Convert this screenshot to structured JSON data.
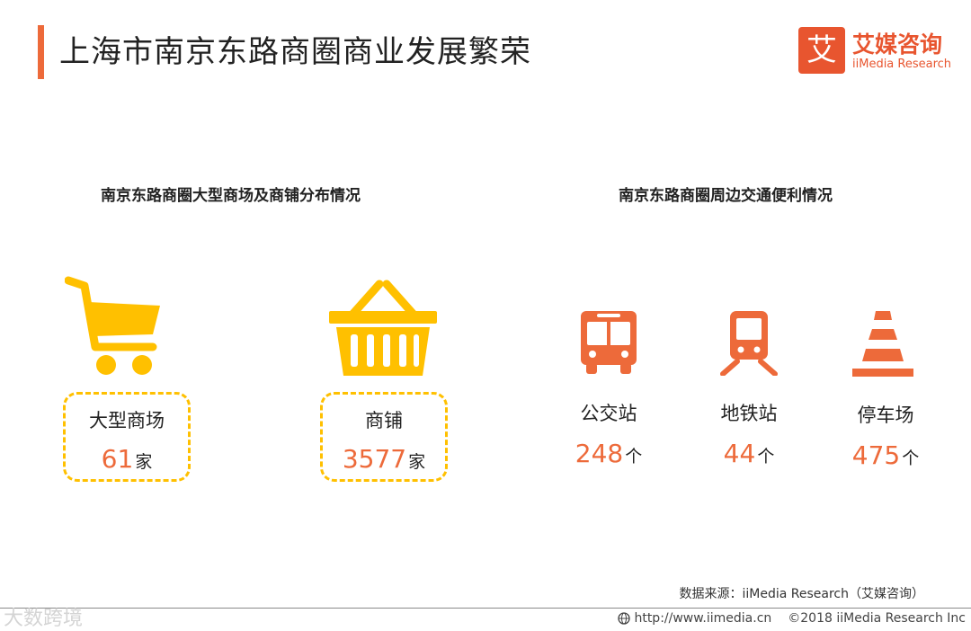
{
  "header": {
    "title": "上海市南京东路商圈商业发展繁荣",
    "accent_color": "#ed6a3a"
  },
  "logo": {
    "mark": "艾",
    "name_cn": "艾媒咨询",
    "name_en": "iiMedia Research",
    "color": "#e8552f"
  },
  "left_section": {
    "title": "南京东路商圈大型商场及商铺分布情况",
    "icon_color": "#ffc000",
    "items": [
      {
        "icon": "shopping-cart-icon",
        "label": "大型商场",
        "count": "61",
        "unit": "家"
      },
      {
        "icon": "shopping-basket-icon",
        "label": "商铺",
        "count": "3577",
        "unit": "家"
      }
    ]
  },
  "right_section": {
    "title": "南京东路商圈周边交通便利情况",
    "icon_color": "#ed6a3a",
    "items": [
      {
        "icon": "bus-icon",
        "label": "公交站",
        "count": "248",
        "unit": "个"
      },
      {
        "icon": "subway-icon",
        "label": "地铁站",
        "count": "44",
        "unit": "个"
      },
      {
        "icon": "traffic-cone-icon",
        "label": "停车场",
        "count": "475",
        "unit": "个"
      }
    ]
  },
  "source": "数据来源：iiMedia Research（艾媒咨询）",
  "footer": {
    "watermark": "大数跨境",
    "url": "http://www.iimedia.cn",
    "copyright": "©2018  iiMedia Research  Inc"
  }
}
